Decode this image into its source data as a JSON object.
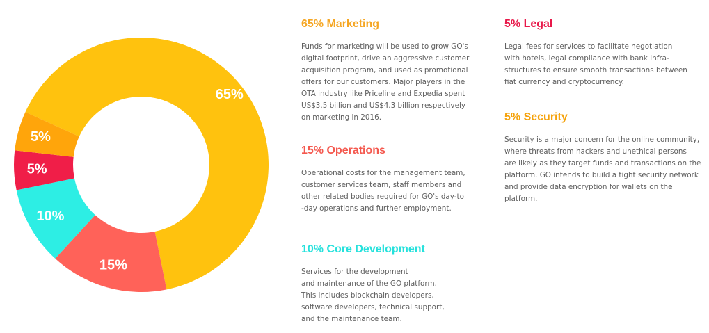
{
  "chart_data": {
    "type": "pie",
    "style": "donut",
    "slices": [
      {
        "label": "65%",
        "value": 65,
        "color": "#FFC20E"
      },
      {
        "label": "15%",
        "value": 15,
        "color": "#FF6259"
      },
      {
        "label": "10%",
        "value": 10,
        "color": "#2DEEE4"
      },
      {
        "label": "5%",
        "value": 5,
        "color": "#F01E48"
      },
      {
        "label": "5%",
        "value": 5,
        "color": "#FFA50B"
      }
    ]
  },
  "sections": {
    "marketing": {
      "title": "65% Marketing",
      "color": "#F5A623",
      "text": "Funds for marketing will be used to grow GO's\ndigital footprint, drive an aggressive customer\nacquisition program, and used as promotional\noffers for our customers. Major players in the\nOTA industry like Priceline and Expedia spent\nUS$3.5 billion and US$4.3 billion respectively\non marketing in 2016."
    },
    "operations": {
      "title": "15% Operations",
      "color": "#F4584E",
      "text": "Operational costs for the management team,\ncustomer services team, staff members and\nother related bodies required for GO's day-to\n-day operations and further employment."
    },
    "core": {
      "title": "10% Core Development",
      "color": "#25E1DC",
      "text": "Services for the development\nand maintenance of the GO platform.\nThis includes blockchain developers,\nsoftware developers, technical support,\nand the maintenance team."
    },
    "legal": {
      "title": "5% Legal",
      "color": "#E8194A",
      "text": "Legal fees for services to facilitate negotiation\nwith hotels, legal compliance with bank infra-\nstructures to ensure smooth transactions between\nfiat currency and cryptocurrency."
    },
    "security": {
      "title": "5% Security",
      "color": "#F5A20B",
      "text": "Security is a major concern for the online community,\nwhere threats from hackers and unethical persons\nare likely as they target funds and transactions on the\nplatform. GO intends to build a tight security network\nand provide data encryption for wallets on the platform."
    }
  }
}
